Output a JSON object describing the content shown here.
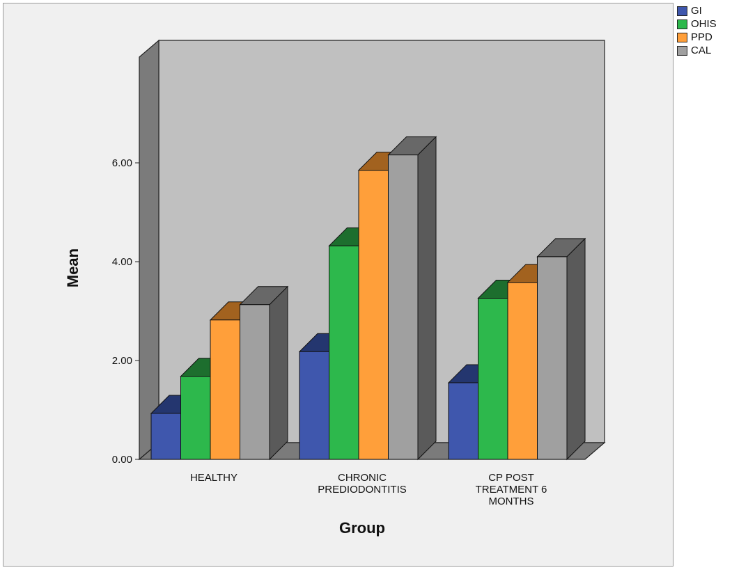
{
  "chart_data": {
    "type": "bar",
    "xlabel": "Group",
    "ylabel": "Mean",
    "categories": [
      [
        "HEALTHY"
      ],
      [
        "CHRONIC",
        "PREDIODONTITIS"
      ],
      [
        "CP POST",
        "TREATMENT 6",
        "MONTHS"
      ]
    ],
    "series": [
      {
        "name": "GI",
        "values": [
          0.93,
          2.18,
          1.55
        ],
        "color": "#3f57ad",
        "top_color": "#24366f"
      },
      {
        "name": "OHIS",
        "values": [
          1.68,
          4.32,
          3.26
        ],
        "color": "#2db84c",
        "top_color": "#1d6e2e"
      },
      {
        "name": "PPD",
        "values": [
          2.82,
          5.85,
          3.58
        ],
        "color": "#ff9f3a",
        "top_color": "#a2621f"
      },
      {
        "name": "CAL",
        "values": [
          3.13,
          6.16,
          4.1
        ],
        "color": "#a0a0a0",
        "top_color": "#686868"
      }
    ],
    "yticks": [
      "0.00",
      "2.00",
      "4.00",
      "6.00"
    ],
    "ylim": [
      0,
      7
    ],
    "legend_position": "top-right",
    "style": "3d",
    "grid": false
  }
}
